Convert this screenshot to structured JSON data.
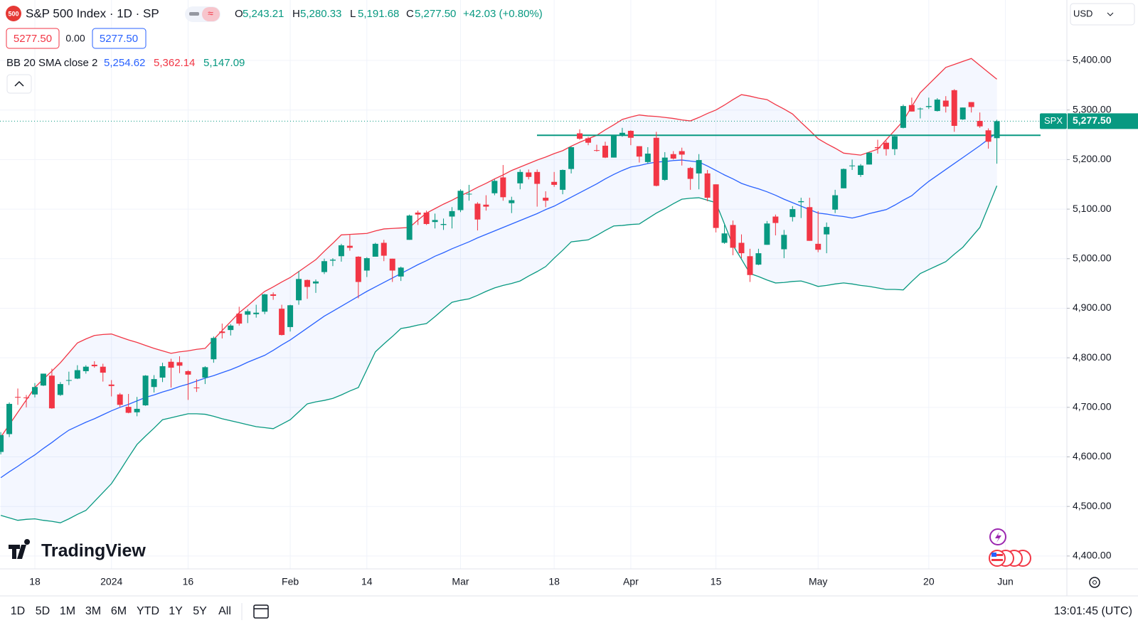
{
  "header": {
    "title": "S&P 500 Index · 1D · SP",
    "symbol_badge": "500",
    "ohlc": [
      {
        "key": "O",
        "value": "5,243.21"
      },
      {
        "key": "H",
        "value": "5,280.33"
      },
      {
        "key": "L",
        "value": "5,191.68"
      },
      {
        "key": "C",
        "value": "5,277.50"
      }
    ],
    "change": "+42.03 (+0.80%)",
    "bid": "5277.50",
    "spread": "0.00",
    "ask": "5277.50",
    "currency": "USD"
  },
  "chart_data": {
    "type": "candlestick",
    "indicator": "BB 20 SMA close 2",
    "up_color": "#089981",
    "down_color": "#f23645",
    "grid": true,
    "categories": [
      null,
      null,
      null,
      null,
      "18",
      null,
      null,
      null,
      null,
      null,
      null,
      null,
      null,
      "2024",
      null,
      null,
      null,
      null,
      null,
      null,
      null,
      null,
      "16",
      null,
      null,
      null,
      null,
      null,
      null,
      null,
      null,
      null,
      null,
      null,
      "Feb",
      null,
      null,
      null,
      null,
      null,
      null,
      null,
      null,
      "14",
      null,
      null,
      null,
      null,
      null,
      null,
      null,
      null,
      null,
      null,
      "Mar",
      null,
      null,
      null,
      null,
      null,
      null,
      null,
      null,
      null,
      null,
      "18",
      null,
      null,
      null,
      null,
      null,
      null,
      null,
      null,
      "Apr",
      null,
      null,
      null,
      null,
      null,
      null,
      null,
      null,
      null,
      "15",
      null,
      null,
      null,
      null,
      null,
      null,
      null,
      null,
      null,
      null,
      null,
      "May",
      null,
      null,
      null,
      null,
      null,
      null,
      null,
      null,
      null,
      null,
      null,
      null,
      "20",
      null,
      null,
      null,
      null,
      null,
      null,
      null,
      null,
      "Jun"
    ],
    "open": [
      4610,
      4646,
      4721,
      4720,
      4726,
      4744,
      4764,
      4725,
      4754,
      4758,
      4773,
      4786,
      4782,
      4746,
      4726,
      4701,
      4690,
      4704,
      4741,
      4760,
      4792,
      4791,
      4773,
      4740,
      4760,
      4797,
      4853,
      4856,
      4889,
      4887,
      4888,
      4893,
      4928,
      4899,
      4862,
      4916,
      4957,
      4950,
      4973,
      4996,
      5005,
      5026,
      5004,
      4976,
      5004,
      5032,
      5000,
      4964,
      5038,
      5093,
      5093,
      5074,
      5068,
      5085,
      5098,
      5131,
      5111,
      5109,
      5132,
      5164,
      5112,
      5152,
      5174,
      5175,
      5123,
      5155,
      5139,
      5181,
      5253,
      5243,
      5219,
      5228,
      5204,
      5248,
      5258,
      5227,
      5195,
      5244,
      5159,
      5211,
      5217,
      5183,
      5172,
      5172,
      5150,
      5032,
      5068,
      5032,
      5005,
      4988,
      5028,
      5085,
      5019,
      5084,
      5114,
      5104,
      5030,
      5049,
      5099,
      5142,
      5187,
      5169,
      5190,
      5225,
      5234,
      5221,
      5264,
      5310,
      5303,
      5306,
      5298,
      5319,
      5340,
      5281,
      5316,
      5278,
      5259,
      5243.21,
      null
    ],
    "high": [
      4650,
      4710,
      4738,
      4725,
      4749,
      4768,
      4778,
      4751,
      4772,
      4785,
      4785,
      4793,
      4788,
      4755,
      4729,
      4727,
      4721,
      4765,
      4765,
      4790,
      4798,
      4803,
      4775,
      4757,
      4783,
      4843,
      4869,
      4868,
      4903,
      4898,
      4907,
      4929,
      4932,
      4907,
      4907,
      4975,
      4958,
      4958,
      5000,
      5001,
      5030,
      5048,
      5005,
      5003,
      5032,
      5038,
      5000,
      4984,
      5089,
      5097,
      5097,
      5091,
      5081,
      5104,
      5140,
      5149,
      5114,
      5128,
      5160,
      5189,
      5125,
      5180,
      5180,
      5180,
      5136,
      5175,
      5180,
      5226,
      5261,
      5246,
      5230,
      5236,
      5249,
      5264,
      5259,
      5227,
      5225,
      5256,
      5215,
      5217,
      5224,
      5185,
      5211,
      5179,
      5150,
      5068,
      5077,
      5049,
      5020,
      5020,
      5076,
      5089,
      5058,
      5106,
      5123,
      5123,
      5096,
      5073,
      5139,
      5182,
      5200,
      5191,
      5215,
      5240,
      5238,
      5250,
      5311,
      5325,
      5305,
      5325,
      5324,
      5328,
      5342,
      5305,
      5316,
      5295,
      5263,
      5280.33,
      null
    ],
    "low": [
      4605,
      4640,
      4705,
      4700,
      4720,
      4743,
      4697,
      4723,
      4745,
      4757,
      4768,
      4780,
      4752,
      4722,
      4700,
      4688,
      4682,
      4703,
      4730,
      4751,
      4740,
      4769,
      4715,
      4731,
      4747,
      4790,
      4839,
      4845,
      4865,
      4870,
      4881,
      4888,
      4917,
      4845,
      4853,
      4907,
      4919,
      4931,
      4969,
      4985,
      4994,
      5016,
      4920,
      4963,
      5004,
      4995,
      4953,
      4955,
      5038,
      5068,
      5068,
      5061,
      5058,
      5061,
      5094,
      5117,
      5057,
      5097,
      5128,
      5117,
      5092,
      5140,
      5160,
      5105,
      5104,
      5145,
      5130,
      5172,
      5240,
      5229,
      5216,
      5203,
      5204,
      5246,
      5229,
      5194,
      5192,
      5146,
      5157,
      5200,
      5188,
      5139,
      5140,
      5116,
      5053,
      5030,
      5007,
      5001,
      4953,
      4987,
      5028,
      5047,
      5001,
      5075,
      5082,
      5036,
      5013,
      5011,
      5092,
      5142,
      5179,
      5165,
      5190,
      5212,
      5208,
      5209,
      5263,
      5297,
      5283,
      5302,
      5297,
      5295,
      5256,
      5280,
      5295,
      5264,
      5222,
      5191.68,
      null
    ],
    "close": [
      4644,
      4707,
      4720,
      4719,
      4741,
      4768,
      4698,
      4747,
      4755,
      4775,
      4782,
      4783,
      4770,
      4743,
      4705,
      4689,
      4697,
      4764,
      4757,
      4783,
      4780,
      4784,
      4766,
      4739,
      4781,
      4840,
      4850,
      4865,
      4869,
      4894,
      4891,
      4928,
      4925,
      4846,
      4906,
      4959,
      4943,
      4954,
      4995,
      4998,
      5027,
      5022,
      4953,
      5001,
      5030,
      5006,
      4976,
      4982,
      5087,
      5089,
      5070,
      5078,
      5070,
      5096,
      5137,
      5131,
      5079,
      5105,
      5157,
      5124,
      5118,
      5175,
      5165,
      5151,
      5117,
      5149,
      5179,
      5225,
      5242,
      5234,
      5218,
      5204,
      5249,
      5254,
      5244,
      5206,
      5212,
      5147,
      5204,
      5202,
      5210,
      5161,
      5199,
      5123,
      5062,
      5051,
      5022,
      5011,
      4967,
      5011,
      5071,
      5072,
      5048,
      5100,
      5116,
      5036,
      5018,
      5064,
      5128,
      5181,
      5188,
      5188,
      5214,
      5223,
      5221,
      5247,
      5308,
      5297,
      5303,
      5308,
      5321,
      5307,
      5268,
      5305,
      5306,
      5267,
      5236,
      5277.5,
      null
    ],
    "bands": [
      {
        "color": "#2962ff",
        "value_label": "5,254.62",
        "values": [
          4558,
          4570,
          4581,
          4593,
          4604,
          4617,
          4629,
          4642,
          4654,
          4662,
          4670,
          4677,
          4685,
          4693,
          4700,
          4706,
          4713,
          4720,
          4725,
          4731,
          4736,
          4742,
          4747,
          4753,
          4759,
          4764,
          4770,
          4776,
          4783,
          4791,
          4798,
          4805,
          4815,
          4826,
          4836,
          4848,
          4860,
          4872,
          4884,
          4894,
          4904,
          4914,
          4924,
          4934,
          4943,
          4952,
          4961,
          4970,
          4979,
          4988,
          4996,
          5005,
          5012,
          5020,
          5027,
          5034,
          5042,
          5049,
          5056,
          5063,
          5070,
          5077,
          5084,
          5091,
          5099,
          5106,
          5115,
          5124,
          5133,
          5142,
          5151,
          5161,
          5170,
          5178,
          5185,
          5188,
          5192,
          5195,
          5196,
          5198,
          5199,
          5197,
          5195,
          5187,
          5178,
          5169,
          5161,
          5152,
          5146,
          5141,
          5135,
          5128,
          5120,
          5113,
          5106,
          5099,
          5092,
          5090,
          5087,
          5085,
          5082,
          5086,
          5091,
          5095,
          5099,
          5108,
          5118,
          5127,
          5142,
          5156,
          5168,
          5180,
          5192,
          5204,
          5216,
          5228,
          5241,
          5254.62,
          null
        ]
      },
      {
        "color": "#f23645",
        "value_label": "5,362.14",
        "values": [
          4640,
          4665,
          4690,
          4715,
          4740,
          4757,
          4773,
          4790,
          4810,
          4830,
          4838,
          4845,
          4847,
          4848,
          4842,
          4836,
          4831,
          4825,
          4819,
          4814,
          4809,
          4812,
          4814,
          4817,
          4819,
          4837,
          4855,
          4873,
          4891,
          4905,
          4920,
          4934,
          4943,
          4953,
          4962,
          4974,
          4986,
          4998,
          5015,
          5031,
          5048,
          5049,
          5050,
          5051,
          5056,
          5060,
          5061,
          5062,
          5063,
          5078,
          5092,
          5101,
          5110,
          5118,
          5127,
          5135,
          5144,
          5152,
          5161,
          5169,
          5178,
          5185,
          5192,
          5199,
          5205,
          5212,
          5218,
          5227,
          5235,
          5242,
          5249,
          5260,
          5270,
          5281,
          5286,
          5290,
          5288,
          5287,
          5285,
          5283,
          5280,
          5278,
          5285,
          5293,
          5300,
          5310,
          5321,
          5331,
          5328,
          5324,
          5321,
          5311,
          5302,
          5292,
          5275,
          5259,
          5242,
          5232,
          5223,
          5213,
          5211,
          5209,
          5215,
          5221,
          5240,
          5259,
          5278,
          5307,
          5335,
          5352,
          5369,
          5386,
          5392,
          5398,
          5404,
          5390,
          5376,
          5362.14,
          null
        ]
      },
      {
        "color": "#089981",
        "value_label": "5,147.09",
        "values": [
          4482,
          4477,
          4472,
          4474,
          4475,
          4472,
          4470,
          4467,
          4475,
          4484,
          4492,
          4510,
          4528,
          4546,
          4572,
          4599,
          4625,
          4642,
          4658,
          4675,
          4679,
          4683,
          4687,
          4687,
          4686,
          4682,
          4677,
          4673,
          4669,
          4665,
          4661,
          4659,
          4657,
          4666,
          4675,
          4691,
          4707,
          4711,
          4714,
          4718,
          4725,
          4733,
          4740,
          4776,
          4812,
          4828,
          4843,
          4859,
          4862,
          4866,
          4869,
          4883,
          4898,
          4912,
          4916,
          4919,
          4926,
          4934,
          4941,
          4946,
          4950,
          4955,
          4965,
          4974,
          4984,
          5001,
          5017,
          5034,
          5036,
          5038,
          5047,
          5057,
          5066,
          5067,
          5069,
          5070,
          5081,
          5092,
          5101,
          5111,
          5120,
          5122,
          5123,
          5118,
          5113,
          5070,
          5027,
          4999,
          4970,
          4964,
          4957,
          4951,
          4952,
          4954,
          4955,
          4950,
          4944,
          4946,
          4949,
          4951,
          4949,
          4946,
          4944,
          4941,
          4938,
          4938,
          4937,
          4954,
          4970,
          4978,
          4986,
          4994,
          5009,
          5023,
          5043,
          5063,
          5105,
          5147.09,
          null
        ]
      }
    ],
    "band_fill": "rgba(41,98,255,0.05)",
    "drawn_level": 5249,
    "drawn_level_color": "#089981",
    "last_price_tag": {
      "symbol": "SPX",
      "label": "5,277.50"
    },
    "ylim": [
      4374,
      5522
    ],
    "yticks": [
      {
        "value": 4400,
        "label": "4,400.00"
      },
      {
        "value": 4500,
        "label": "4,500.00"
      },
      {
        "value": 4600,
        "label": "4,600.00"
      },
      {
        "value": 4700,
        "label": "4,700.00"
      },
      {
        "value": 4800,
        "label": "4,800.00"
      },
      {
        "value": 4900,
        "label": "4,900.00"
      },
      {
        "value": 5000,
        "label": "5,000.00"
      },
      {
        "value": 5100,
        "label": "5,100.00"
      },
      {
        "value": 5200,
        "label": "5,200.00"
      },
      {
        "value": 5300,
        "label": "5,300.00"
      },
      {
        "value": 5400,
        "label": "5,400.00"
      }
    ]
  },
  "footer": {
    "watermark": "TradingView",
    "ranges": [
      "1D",
      "5D",
      "1M",
      "3M",
      "6M",
      "YTD",
      "1Y",
      "5Y",
      "All"
    ],
    "clock": "13:01:45 (UTC)"
  }
}
